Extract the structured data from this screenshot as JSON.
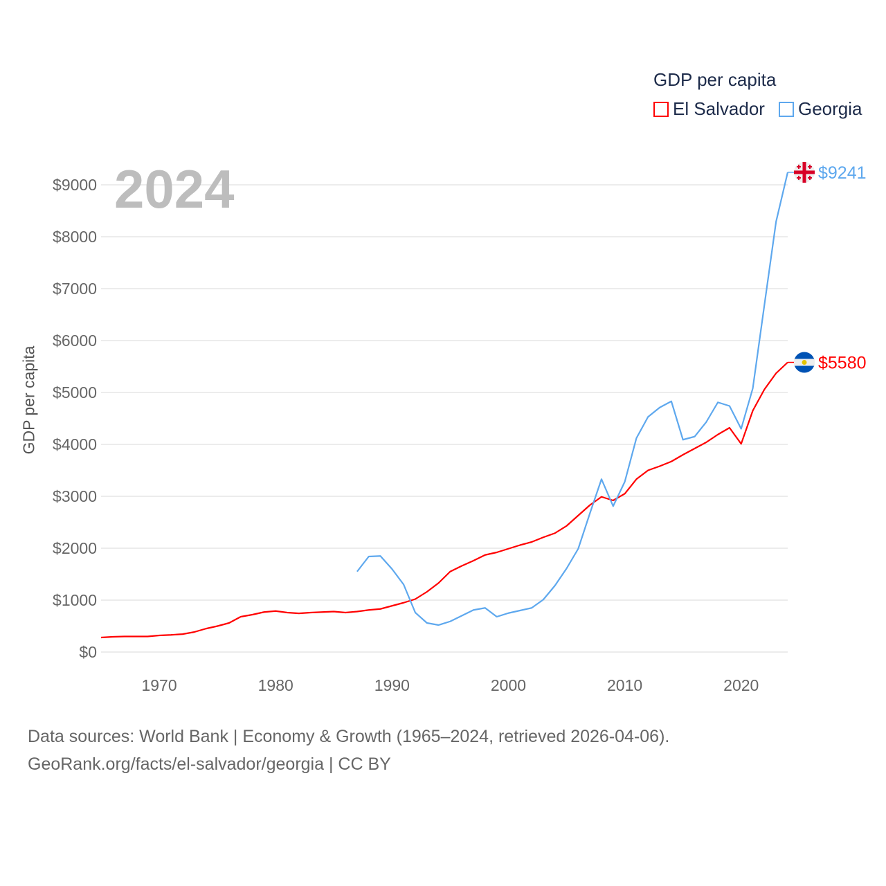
{
  "chart_data": {
    "type": "line",
    "title": "GDP per capita",
    "highlight_year": "2024",
    "xlabel": "",
    "ylabel": "GDP per capita",
    "xlim": [
      1965,
      2024
    ],
    "ylim": [
      0,
      9000
    ],
    "x_ticks": [
      1970,
      1980,
      1990,
      2000,
      2010,
      2020
    ],
    "y_ticks": [
      0,
      1000,
      2000,
      3000,
      4000,
      5000,
      6000,
      7000,
      8000,
      9000
    ],
    "y_tick_labels": [
      "$0",
      "$1000",
      "$2000",
      "$3000",
      "$4000",
      "$5000",
      "$6000",
      "$7000",
      "$8000",
      "$9000"
    ],
    "grid": true,
    "legend_position": "top-right",
    "series": [
      {
        "name": "El Salvador",
        "color": "#ff0000",
        "end_label": "$5580",
        "start_year": 1965,
        "values": [
          280,
          293,
          300,
          300,
          300,
          320,
          330,
          345,
          385,
          450,
          500,
          560,
          680,
          720,
          770,
          790,
          760,
          745,
          760,
          770,
          780,
          760,
          780,
          810,
          830,
          890,
          950,
          1020,
          1160,
          1330,
          1550,
          1660,
          1760,
          1870,
          1920,
          1990,
          2060,
          2120,
          2210,
          2290,
          2430,
          2630,
          2830,
          2990,
          2920,
          3050,
          3330,
          3500,
          3580,
          3670,
          3800,
          3920,
          4040,
          4190,
          4320,
          4010,
          4650,
          5060,
          5370,
          5580
        ]
      },
      {
        "name": "Georgia",
        "color": "#5ea8ee",
        "end_label": "$9241",
        "start_year": 1987,
        "values": [
          1550,
          1840,
          1850,
          1600,
          1300,
          760,
          560,
          520,
          590,
          700,
          810,
          850,
          680,
          750,
          800,
          850,
          1010,
          1280,
          1610,
          1990,
          2670,
          3330,
          2810,
          3280,
          4120,
          4530,
          4710,
          4830,
          4090,
          4150,
          4430,
          4810,
          4740,
          4300,
          5080,
          6690,
          8290,
          9241
        ]
      }
    ]
  },
  "source": {
    "line1": "Data sources: World Bank | Economy & Growth (1965–2024, retrieved 2026-04-06).",
    "line2": "GeoRank.org/facts/el-salvador/georgia | CC BY"
  }
}
